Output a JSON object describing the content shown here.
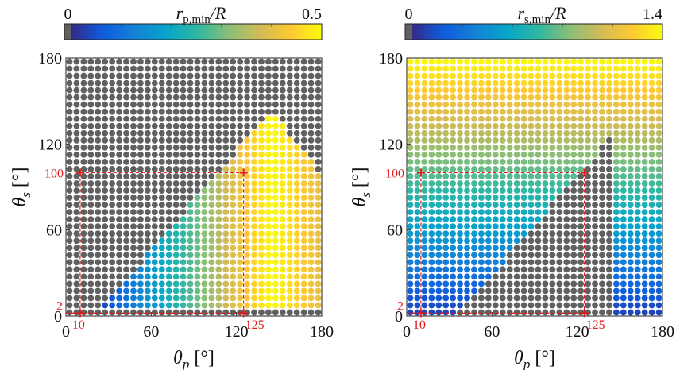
{
  "chart_data": [
    {
      "type": "scatter",
      "xlim": [
        0,
        180
      ],
      "ylim": [
        0,
        180
      ],
      "xticks": [
        "0",
        "60",
        "120",
        "180"
      ],
      "yticks": [
        "0",
        "60",
        "120",
        "180"
      ],
      "xlabel": {
        "base": "θ",
        "sub": "p",
        "unit": " [°]"
      },
      "ylabel": {
        "base": "θ",
        "sub": "s",
        "unit": " [°]"
      },
      "colorbar": {
        "title_var": "r",
        "title_sub": "p,min",
        "title_tail": "/R",
        "min_label": "0",
        "max_label": "0.5",
        "min": 0,
        "max": 0.5
      },
      "marker": {
        "x": 125,
        "y": 100,
        "ref_x": 10,
        "ref_y": 2
      },
      "marker_labels": {
        "y_main": "100",
        "x_main": "125",
        "x_ref": "10",
        "y_ref": "2"
      },
      "grid_x": {
        "start": 2.5,
        "step": 5,
        "count": 36
      },
      "grid_y": {
        "start": 2.5,
        "step": 5,
        "count": 36
      },
      "infeasible_color": "#606060",
      "feasible_region": "θs ≤ 1.15·(θp − 20) and θs ≤ 150 − 1.3·(θp − 140), θs ≥ 4",
      "value_trend": "r_p,min increases with θp (≈0.05 at θp=30 to ≈0.5 at θp=145), decreasing slightly to ≈0.40 at θp=180"
    },
    {
      "type": "scatter",
      "xlim": [
        0,
        180
      ],
      "ylim": [
        0,
        180
      ],
      "xticks": [
        "0",
        "60",
        "120",
        "180"
      ],
      "yticks": [
        "0",
        "60",
        "120",
        "180"
      ],
      "xlabel": {
        "base": "θ",
        "sub": "p",
        "unit": " [°]"
      },
      "ylabel": {
        "base": "θ",
        "sub": "s",
        "unit": " [°]"
      },
      "colorbar": {
        "title_var": "r",
        "title_sub": "s,min",
        "title_tail": "/R",
        "min_label": "0",
        "max_label": "1.4",
        "min": 0,
        "max": 1.4
      },
      "marker": {
        "x": 125,
        "y": 100,
        "ref_x": 10,
        "ref_y": 2
      },
      "marker_labels": {
        "y_main": "100",
        "x_main": "125",
        "x_ref": "10",
        "y_ref": "2"
      },
      "grid_x": {
        "start": 2.5,
        "step": 5,
        "count": 36
      },
      "grid_y": {
        "start": 2.5,
        "step": 5,
        "count": 36
      },
      "infeasible_color": "#606060",
      "value_trend": "r_s,min increases with θs (≈0.1 at θs=5 to ≈1.4 at θs=180); grey wedge for θs ≤ 1.15·(θp − 35), θp < 145"
    }
  ],
  "colors": {
    "parula": [
      "#352a87",
      "#0f5cdd",
      "#1481d6",
      "#06a4ca",
      "#2eb7a4",
      "#87bf77",
      "#d1bb59",
      "#fec832",
      "#f9fb0e"
    ],
    "gray": "#606060",
    "red": "#e01b1b"
  }
}
